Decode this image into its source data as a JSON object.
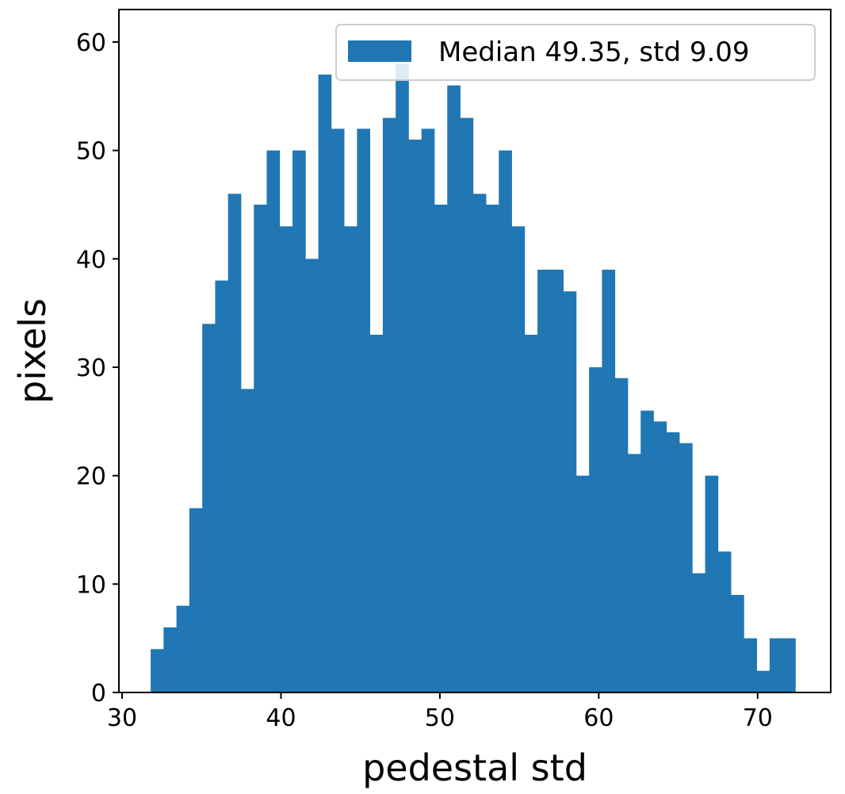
{
  "chart_data": {
    "type": "bar",
    "bin_width": 0.8115,
    "bin_start": 31.8,
    "values": [
      4,
      6,
      8,
      17,
      34,
      38,
      46,
      28,
      45,
      50,
      43,
      50,
      40,
      57,
      52,
      43,
      52,
      33,
      53,
      58,
      51,
      52,
      45,
      56,
      53,
      46,
      45,
      50,
      43,
      33,
      39,
      39,
      37,
      20,
      30,
      39,
      29,
      22,
      26,
      25,
      24,
      23,
      11,
      20,
      13,
      9,
      5,
      2,
      5,
      5
    ],
    "xlabel": "pedestal std",
    "ylabel": "pixels",
    "xlim": [
      29.8,
      74.6
    ],
    "ylim": [
      0,
      63
    ],
    "x_ticks": [
      "30",
      "40",
      "50",
      "60",
      "70"
    ],
    "y_ticks": [
      "0",
      "10",
      "20",
      "30",
      "40",
      "50",
      "60"
    ],
    "legend": {
      "label": "Median 49.35, std 9.09",
      "location": "upper right"
    },
    "color": "#2077b4",
    "grid": false
  }
}
